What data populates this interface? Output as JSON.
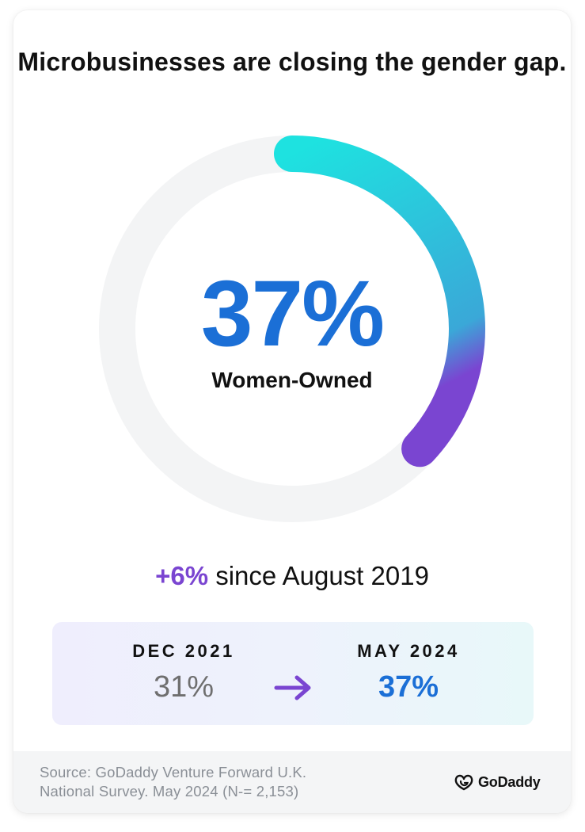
{
  "title": "Microbusinesses are closing the gender gap.",
  "chart_data": {
    "type": "pie",
    "variant": "donut",
    "value_percent": 37,
    "value_label": "37%",
    "label": "Women-Owned",
    "colors": {
      "track": "#f3f4f5",
      "gradient_start": "#1ee2e0",
      "gradient_mid": "#3aa8d8",
      "gradient_end": "#7a45d1"
    }
  },
  "change": {
    "delta": "+6%",
    "text": " since August 2019"
  },
  "comparison": {
    "from": {
      "date": "DEC 2021",
      "value": "31%"
    },
    "to": {
      "date": "MAY 2024",
      "value": "37%"
    },
    "arrow_icon": "arrow-right-icon"
  },
  "footer": {
    "source_line1": "Source: GoDaddy Venture Forward U.K.",
    "source_line2": "National Survey. May 2024 (N-= 2,153)",
    "brand": "GoDaddy",
    "brand_icon": "godaddy-logo-icon"
  },
  "colors": {
    "accent_blue": "#1b6fd6",
    "accent_purple": "#7a45d1"
  }
}
